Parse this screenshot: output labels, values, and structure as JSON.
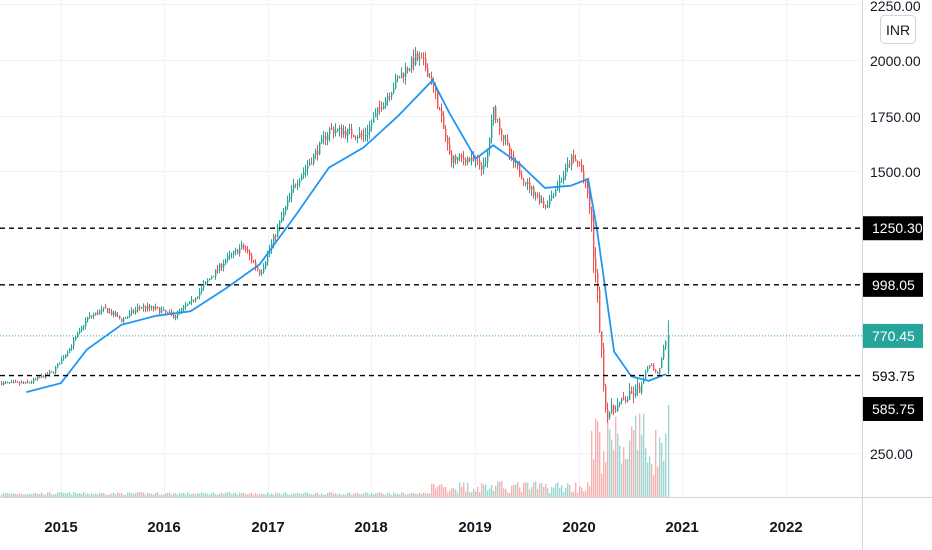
{
  "chart_data": {
    "type": "candlestick",
    "currency": "INR",
    "y_ticks": [
      "2250.00",
      "2000.00",
      "1750.00",
      "1500.00",
      "250.00"
    ],
    "x_ticks": [
      "2015",
      "2016",
      "2017",
      "2018",
      "2019",
      "2020",
      "2021",
      "2022"
    ],
    "colors": {
      "up": "#26a69a",
      "down": "#ef5350",
      "ma": "#2196f3",
      "level": "#000000",
      "last": "#26a69a"
    },
    "levels": [
      {
        "label": "1250.30",
        "value": 1250.3,
        "style": "dashed",
        "badge": true
      },
      {
        "label": "998.05",
        "value": 998.05,
        "style": "dashed",
        "badge": true
      },
      {
        "label": "593.75",
        "value": 593.75,
        "style": "dashed",
        "badge": false
      },
      {
        "label": "585.75",
        "value": 585.75,
        "style": "none",
        "badge": true
      }
    ],
    "last_price": {
      "label": "770.45",
      "value": 770.45
    },
    "price_points": [
      [
        "2014-09",
        560
      ],
      [
        "2014-12",
        610
      ],
      [
        "2015-02",
        720
      ],
      [
        "2015-04",
        850
      ],
      [
        "2015-06",
        890
      ],
      [
        "2015-08",
        840
      ],
      [
        "2015-10",
        900
      ],
      [
        "2015-12",
        890
      ],
      [
        "2016-02",
        860
      ],
      [
        "2016-04",
        920
      ],
      [
        "2016-06",
        1020
      ],
      [
        "2016-08",
        1110
      ],
      [
        "2016-10",
        1170
      ],
      [
        "2016-12",
        1050
      ],
      [
        "2017-02",
        1250
      ],
      [
        "2017-04",
        1450
      ],
      [
        "2017-06",
        1560
      ],
      [
        "2017-08",
        1690
      ],
      [
        "2017-10",
        1680
      ],
      [
        "2017-12",
        1660
      ],
      [
        "2018-02",
        1800
      ],
      [
        "2018-04",
        1920
      ],
      [
        "2018-06",
        2010
      ],
      [
        "2018-07",
        1980
      ],
      [
        "2018-08",
        1890
      ],
      [
        "2018-10",
        1560
      ],
      [
        "2018-12",
        1560
      ],
      [
        "2019-02",
        1520
      ],
      [
        "2019-03",
        1780
      ],
      [
        "2019-05",
        1560
      ],
      [
        "2019-07",
        1440
      ],
      [
        "2019-09",
        1350
      ],
      [
        "2019-11",
        1480
      ],
      [
        "2019-12",
        1560
      ],
      [
        "2020-01",
        1530
      ],
      [
        "2020-02",
        1380
      ],
      [
        "2020-03",
        950
      ],
      [
        "2020-04",
        420
      ],
      [
        "2020-06",
        480
      ],
      [
        "2020-08",
        540
      ],
      [
        "2020-09",
        650
      ],
      [
        "2020-10",
        600
      ],
      [
        "2020-11",
        770
      ]
    ],
    "ma_points": [
      [
        "2014-09",
        520
      ],
      [
        "2015-01",
        560
      ],
      [
        "2015-04",
        710
      ],
      [
        "2015-08",
        820
      ],
      [
        "2015-12",
        860
      ],
      [
        "2016-04",
        880
      ],
      [
        "2016-08",
        980
      ],
      [
        "2016-12",
        1090
      ],
      [
        "2017-04",
        1300
      ],
      [
        "2017-08",
        1520
      ],
      [
        "2017-12",
        1610
      ],
      [
        "2018-04",
        1750
      ],
      [
        "2018-08",
        1910
      ],
      [
        "2018-10",
        1760
      ],
      [
        "2019-01",
        1560
      ],
      [
        "2019-03",
        1620
      ],
      [
        "2019-06",
        1540
      ],
      [
        "2019-09",
        1430
      ],
      [
        "2019-12",
        1440
      ],
      [
        "2020-02",
        1470
      ],
      [
        "2020-03",
        1250
      ],
      [
        "2020-05",
        700
      ],
      [
        "2020-07",
        590
      ],
      [
        "2020-09",
        570
      ],
      [
        "2020-11",
        600
      ]
    ]
  }
}
